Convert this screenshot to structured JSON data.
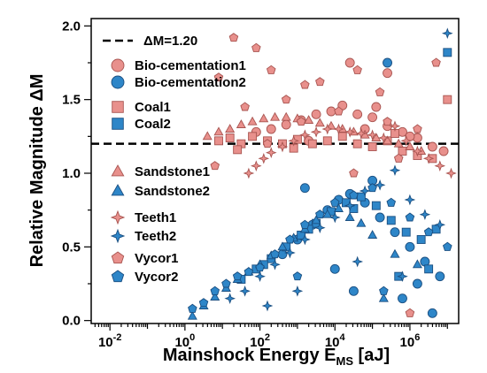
{
  "chart_data": {
    "type": "scatter",
    "title": "",
    "xlabel": "Mainshock Energy E",
    "xlabel_sub": "MS",
    "xlabel_unit": " [aJ]",
    "ylabel": "Relative Magnitude ΔM",
    "x_scale": "log",
    "xlim_log10": [
      -2.5,
      7.3
    ],
    "ylim": [
      -0.02,
      2.05
    ],
    "x_ticks_log10": [
      -2,
      0,
      2,
      4,
      6
    ],
    "x_tick_base": "10",
    "x_tick_exps": [
      "-2",
      "0",
      "2",
      "4",
      "6"
    ],
    "y_ticks": [
      0.0,
      0.5,
      1.0,
      1.5,
      2.0
    ],
    "y_tick_labels": [
      "0.0",
      "0.5",
      "1.0",
      "1.5",
      "2.0"
    ],
    "grid": false,
    "legend_position": "left, inside",
    "reference_line": {
      "label": "ΔM=1.20",
      "y": 1.2,
      "style": "dashed"
    },
    "colors": {
      "pink_fill": "#E8908C",
      "pink_edge": "#A85450",
      "blue_fill": "#2E86C8",
      "blue_edge": "#1A4E80"
    },
    "series": [
      {
        "name": "Bio-cementation1",
        "marker": "circle",
        "color": "pink",
        "points": [
          [
            1.9,
            1.28
          ],
          [
            2.3,
            1.3
          ],
          [
            2.7,
            1.33
          ],
          [
            3.1,
            1.36
          ],
          [
            3.5,
            1.4
          ],
          [
            3.9,
            1.42
          ],
          [
            4.2,
            1.46
          ],
          [
            4.6,
            1.4
          ],
          [
            5.0,
            1.38
          ],
          [
            5.4,
            1.32
          ],
          [
            5.8,
            1.28
          ],
          [
            6.2,
            1.24
          ],
          [
            6.6,
            1.18
          ],
          [
            4.4,
            1.75
          ],
          [
            5.4,
            1.68
          ],
          [
            6.0,
            1.25
          ],
          [
            3.3,
            1.22
          ],
          [
            4.8,
            1.3
          ],
          [
            6.9,
            1.15
          ],
          [
            5.1,
            1.45
          ]
        ]
      },
      {
        "name": "Bio-cementation2",
        "marker": "circle",
        "color": "blue",
        "points": [
          [
            2.6,
            0.45
          ],
          [
            3.0,
            0.55
          ],
          [
            3.4,
            0.65
          ],
          [
            3.8,
            0.75
          ],
          [
            4.1,
            0.82
          ],
          [
            4.4,
            0.86
          ],
          [
            4.8,
            0.8
          ],
          [
            5.2,
            0.7
          ],
          [
            5.6,
            0.6
          ],
          [
            6.0,
            0.5
          ],
          [
            6.4,
            0.4
          ],
          [
            6.8,
            0.3
          ],
          [
            5.4,
            1.75
          ],
          [
            3.2,
            0.9
          ],
          [
            4.5,
            0.2
          ],
          [
            5.8,
            0.15
          ],
          [
            6.6,
            0.05
          ],
          [
            4.0,
            0.35
          ],
          [
            6.2,
            0.25
          ],
          [
            5.0,
            0.95
          ]
        ]
      },
      {
        "name": "Coal1",
        "marker": "square",
        "color": "pink",
        "points": [
          [
            0.9,
            1.22
          ],
          [
            1.2,
            1.24
          ],
          [
            1.5,
            1.2
          ],
          [
            1.8,
            1.25
          ],
          [
            2.2,
            1.22
          ],
          [
            2.6,
            1.2
          ],
          [
            3.0,
            1.23
          ],
          [
            3.4,
            1.2
          ],
          [
            3.8,
            1.22
          ],
          [
            4.2,
            1.25
          ],
          [
            4.6,
            1.2
          ],
          [
            5.0,
            1.18
          ],
          [
            5.4,
            1.22
          ],
          [
            5.8,
            1.15
          ],
          [
            6.2,
            1.12
          ],
          [
            6.6,
            1.1
          ],
          [
            7.0,
            1.5
          ],
          [
            1.4,
            1.16
          ],
          [
            2.9,
            1.17
          ],
          [
            5.6,
            1.27
          ]
        ]
      },
      {
        "name": "Coal2",
        "marker": "square",
        "color": "blue",
        "points": [
          [
            1.5,
            0.28
          ],
          [
            1.9,
            0.35
          ],
          [
            2.3,
            0.42
          ],
          [
            2.7,
            0.5
          ],
          [
            3.1,
            0.58
          ],
          [
            3.5,
            0.66
          ],
          [
            3.9,
            0.74
          ],
          [
            4.3,
            0.8
          ],
          [
            4.7,
            0.84
          ],
          [
            5.1,
            0.78
          ],
          [
            5.5,
            0.68
          ],
          [
            5.9,
            0.6
          ],
          [
            6.3,
            0.55
          ],
          [
            6.7,
            0.62
          ],
          [
            7.0,
            1.82
          ],
          [
            2.1,
            0.38
          ],
          [
            3.3,
            0.62
          ],
          [
            4.5,
            0.76
          ],
          [
            5.7,
            0.3
          ],
          [
            6.5,
            0.35
          ]
        ]
      },
      {
        "name": "Sandstone1",
        "marker": "triangle",
        "color": "pink",
        "points": [
          [
            0.6,
            1.25
          ],
          [
            0.9,
            1.28
          ],
          [
            1.2,
            1.3
          ],
          [
            1.5,
            1.33
          ],
          [
            1.8,
            1.35
          ],
          [
            2.1,
            1.37
          ],
          [
            2.4,
            1.38
          ],
          [
            2.7,
            1.38
          ],
          [
            3.0,
            1.37
          ],
          [
            3.3,
            1.36
          ],
          [
            3.6,
            1.34
          ],
          [
            3.9,
            1.32
          ],
          [
            4.2,
            1.3
          ],
          [
            4.5,
            1.28
          ],
          [
            4.8,
            1.26
          ],
          [
            5.1,
            1.24
          ],
          [
            5.4,
            1.22
          ],
          [
            5.7,
            1.2
          ],
          [
            6.0,
            1.18
          ],
          [
            6.3,
            1.15
          ]
        ]
      },
      {
        "name": "Sandstone2",
        "marker": "triangle",
        "color": "blue",
        "points": [
          [
            0.2,
            0.03
          ],
          [
            0.5,
            0.1
          ],
          [
            0.8,
            0.16
          ],
          [
            1.1,
            0.22
          ],
          [
            1.4,
            0.28
          ],
          [
            1.7,
            0.33
          ],
          [
            2.0,
            0.38
          ],
          [
            2.3,
            0.44
          ],
          [
            2.6,
            0.5
          ],
          [
            2.9,
            0.56
          ],
          [
            3.2,
            0.62
          ],
          [
            3.5,
            0.68
          ],
          [
            3.8,
            0.72
          ],
          [
            4.1,
            0.76
          ],
          [
            4.4,
            0.7
          ],
          [
            4.7,
            0.66
          ],
          [
            5.0,
            0.58
          ],
          [
            5.6,
            0.45
          ],
          [
            6.2,
            0.38
          ],
          [
            5.3,
            0.15
          ]
        ]
      },
      {
        "name": "Teeth1",
        "marker": "star",
        "color": "pink",
        "points": [
          [
            1.7,
            1.0
          ],
          [
            1.9,
            1.05
          ],
          [
            2.1,
            1.1
          ],
          [
            2.3,
            1.14
          ],
          [
            2.6,
            1.18
          ],
          [
            2.9,
            1.22
          ],
          [
            3.2,
            1.26
          ],
          [
            3.5,
            1.28
          ],
          [
            3.8,
            1.3
          ],
          [
            4.1,
            1.3
          ],
          [
            4.4,
            1.28
          ],
          [
            4.7,
            1.27
          ],
          [
            5.0,
            1.26
          ],
          [
            5.3,
            1.24
          ],
          [
            5.6,
            1.32
          ],
          [
            5.9,
            1.22
          ],
          [
            6.2,
            1.15
          ],
          [
            6.5,
            1.1
          ],
          [
            6.8,
            1.05
          ],
          [
            7.1,
            1.0
          ]
        ]
      },
      {
        "name": "Teeth2",
        "marker": "star",
        "color": "blue",
        "points": [
          [
            1.2,
            0.15
          ],
          [
            1.6,
            0.2
          ],
          [
            2.0,
            0.3
          ],
          [
            2.4,
            0.38
          ],
          [
            2.8,
            0.46
          ],
          [
            3.2,
            0.55
          ],
          [
            3.6,
            0.63
          ],
          [
            4.0,
            0.7
          ],
          [
            4.4,
            0.78
          ],
          [
            4.8,
            0.88
          ],
          [
            5.2,
            0.92
          ],
          [
            5.6,
            1.02
          ],
          [
            6.0,
            0.82
          ],
          [
            6.4,
            0.72
          ],
          [
            6.8,
            0.65
          ],
          [
            7.0,
            1.95
          ],
          [
            2.2,
            0.1
          ],
          [
            3.0,
            0.2
          ],
          [
            4.6,
            0.4
          ],
          [
            5.8,
            0.3
          ]
        ]
      },
      {
        "name": "Vycor1",
        "marker": "pentagon",
        "color": "pink",
        "points": [
          [
            0.9,
            1.65
          ],
          [
            1.3,
            1.92
          ],
          [
            1.9,
            1.85
          ],
          [
            2.3,
            1.7
          ],
          [
            2.7,
            1.5
          ],
          [
            3.1,
            1.35
          ],
          [
            3.6,
            1.62
          ],
          [
            4.1,
            1.42
          ],
          [
            4.6,
            1.7
          ],
          [
            5.2,
            1.55
          ],
          [
            5.7,
            1.1
          ],
          [
            6.2,
            1.3
          ],
          [
            6.7,
            1.75
          ],
          [
            6.0,
            0.05
          ],
          [
            4.5,
            1.0
          ],
          [
            3.2,
            1.6
          ],
          [
            2.2,
            1.2
          ],
          [
            0.8,
            1.05
          ],
          [
            5.4,
            1.35
          ],
          [
            1.6,
            1.45
          ]
        ]
      },
      {
        "name": "Vycor2",
        "marker": "pentagon",
        "color": "blue",
        "points": [
          [
            0.2,
            0.08
          ],
          [
            0.5,
            0.12
          ],
          [
            0.8,
            0.2
          ],
          [
            1.1,
            0.25
          ],
          [
            1.4,
            0.3
          ],
          [
            1.7,
            0.33
          ],
          [
            2.0,
            0.36
          ],
          [
            2.4,
            0.45
          ],
          [
            2.8,
            0.55
          ],
          [
            3.2,
            0.65
          ],
          [
            3.6,
            0.72
          ],
          [
            4.0,
            0.8
          ],
          [
            4.5,
            0.85
          ],
          [
            5.0,
            0.9
          ],
          [
            5.5,
            0.8
          ],
          [
            6.0,
            0.7
          ],
          [
            6.5,
            0.6
          ],
          [
            7.0,
            0.5
          ],
          [
            3.0,
            0.3
          ],
          [
            5.3,
            0.2
          ]
        ]
      }
    ]
  }
}
